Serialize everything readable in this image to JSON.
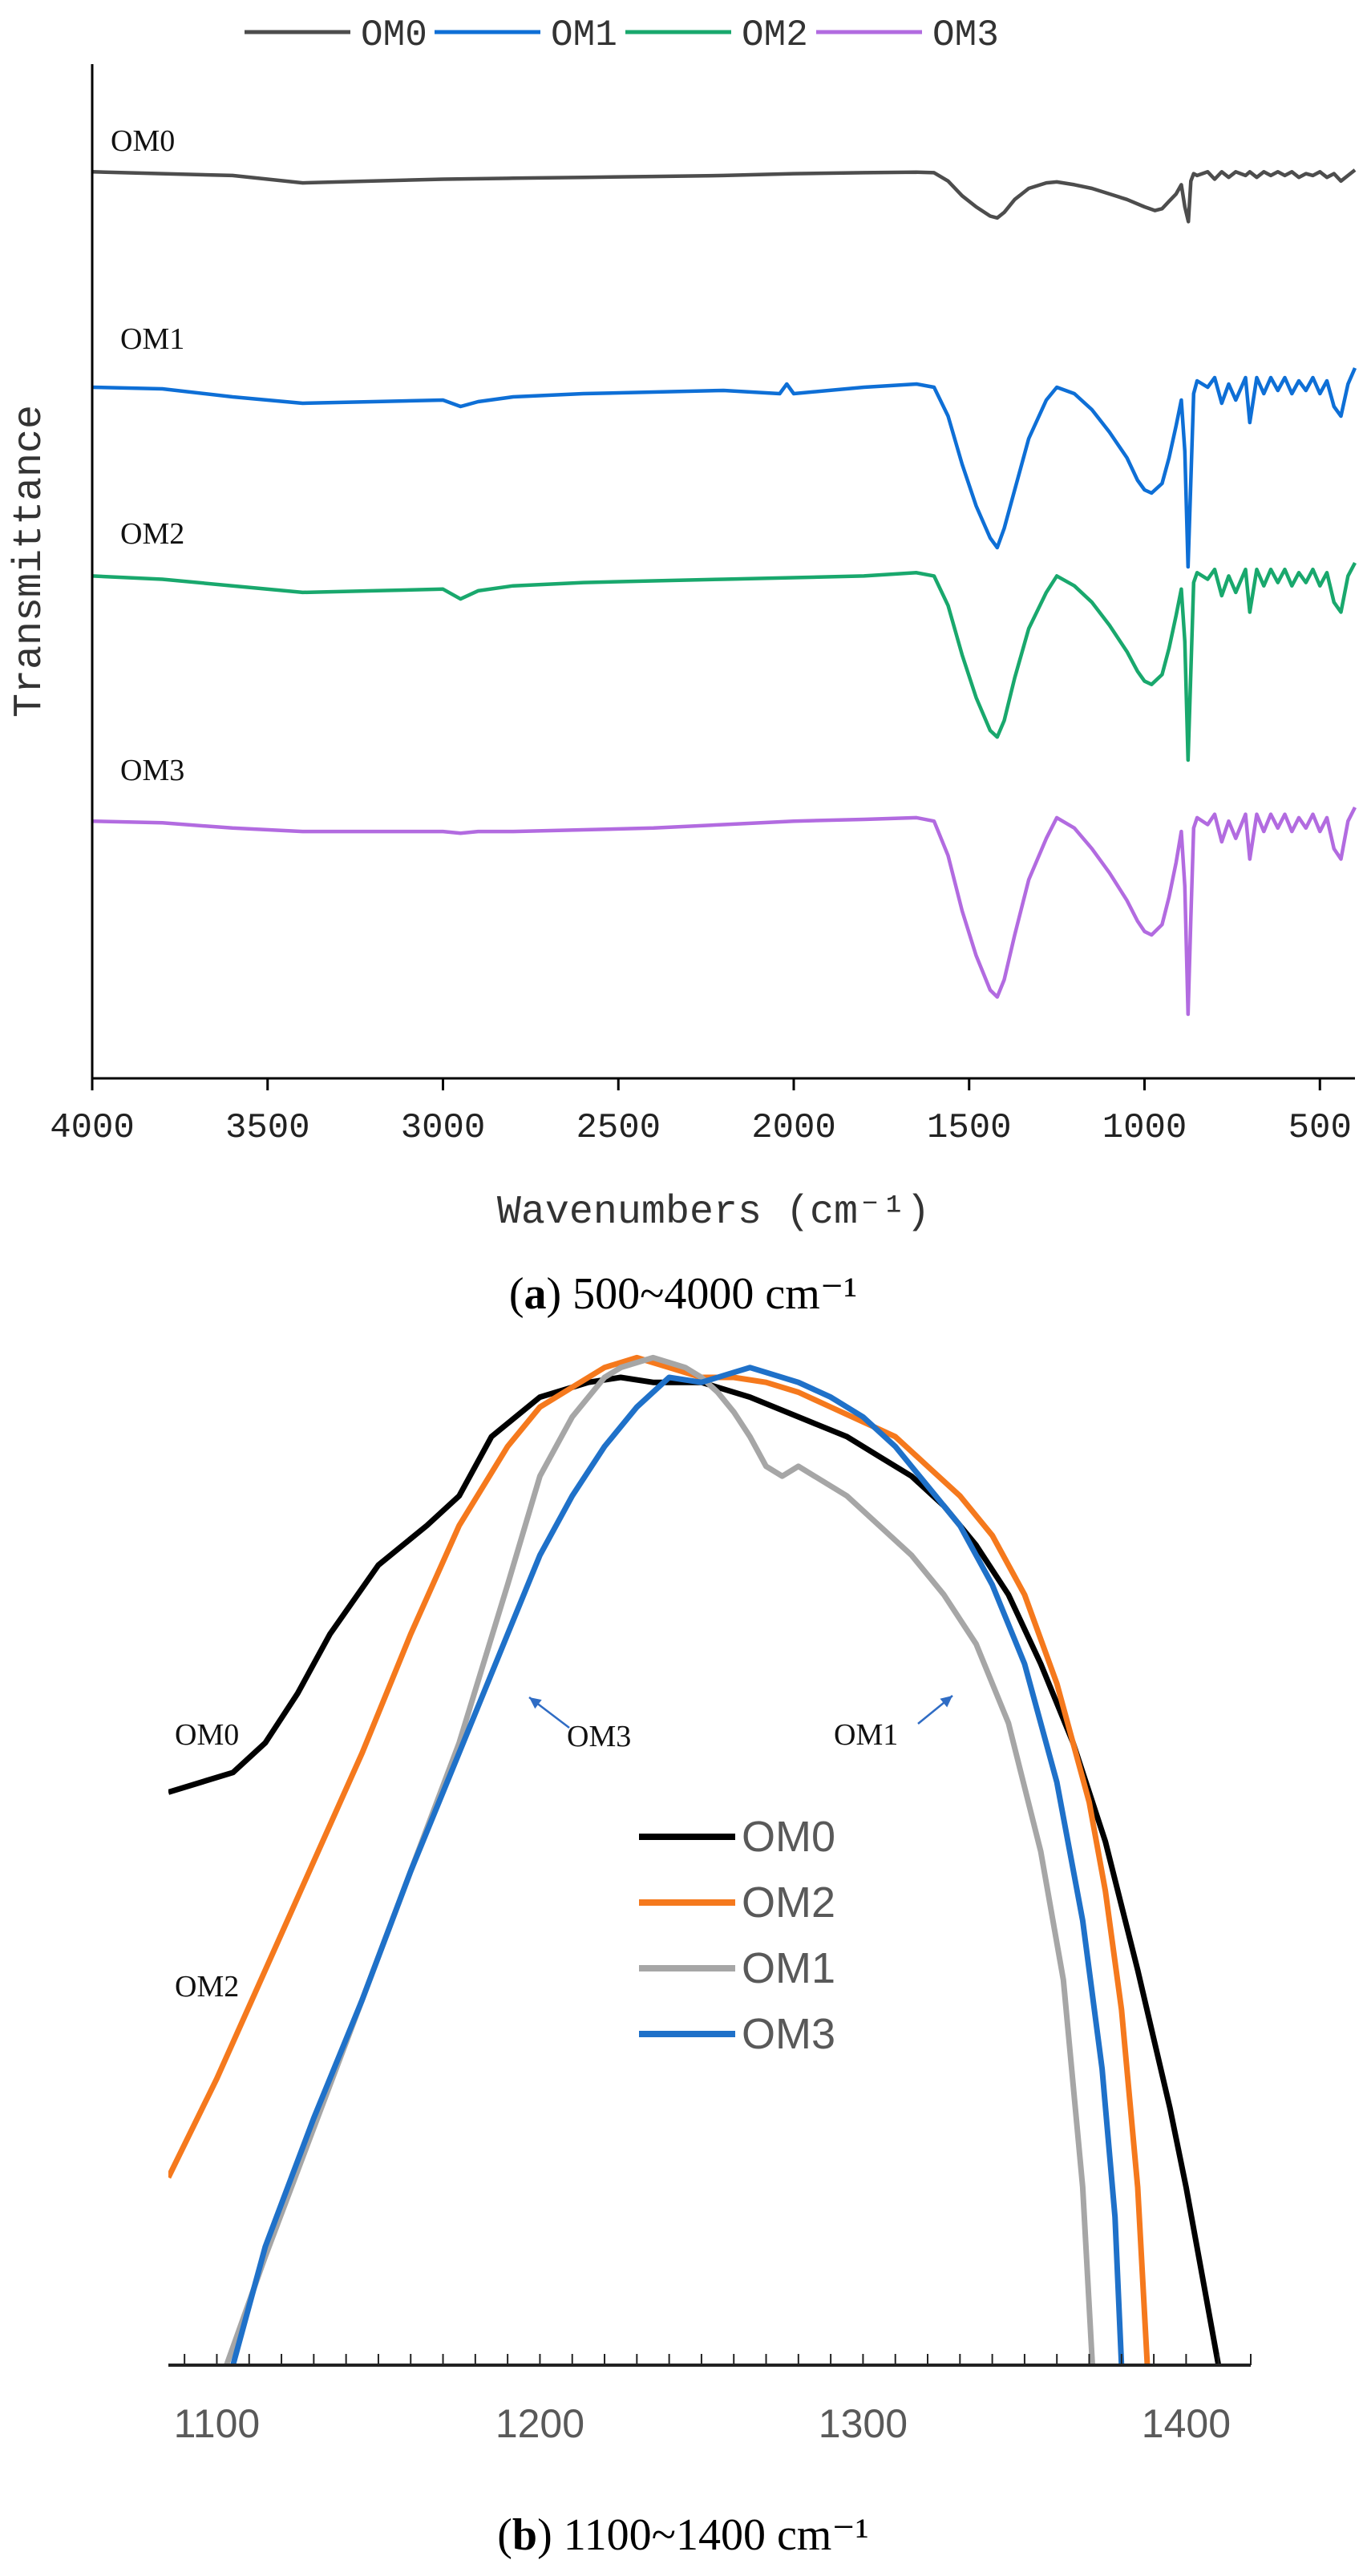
{
  "chart_data": [
    {
      "type": "line",
      "panel": "a",
      "caption_letter": "a",
      "caption_text": " 500~4000 cm⁻¹",
      "xlabel": "Wavenumbers (cm⁻¹)",
      "ylabel": "Transmittance",
      "xlim": [
        4000,
        400
      ],
      "xticks": [
        4000,
        3500,
        3000,
        2500,
        2000,
        1500,
        1000,
        500
      ],
      "legend": [
        "OM0",
        "OM1",
        "OM2",
        "OM3"
      ],
      "legend_position": "top",
      "series": [
        {
          "name": "OM0",
          "color": "#4d4d4d",
          "label": "OM0",
          "x": [
            4000,
            3800,
            3600,
            3400,
            3200,
            3000,
            2800,
            2600,
            2400,
            2200,
            2000,
            1800,
            1650,
            1600,
            1560,
            1520,
            1480,
            1440,
            1420,
            1400,
            1370,
            1330,
            1280,
            1250,
            1200,
            1150,
            1100,
            1050,
            1000,
            970,
            950,
            930,
            910,
            895,
            885,
            875,
            868,
            860,
            850,
            820,
            800,
            780,
            760,
            740,
            712,
            700,
            680,
            660,
            640,
            620,
            600,
            580,
            560,
            540,
            520,
            500,
            480,
            460,
            440,
            420,
            400
          ],
          "y": [
            97,
            96,
            95,
            91,
            92,
            93,
            93.5,
            94,
            94.5,
            95,
            96,
            96.5,
            96.8,
            96.5,
            92,
            84,
            78,
            73,
            72,
            75,
            82,
            88,
            91,
            91.5,
            90,
            88,
            85,
            82,
            78,
            76,
            77,
            81,
            85,
            90,
            78,
            70,
            92,
            96,
            95,
            97,
            93,
            97,
            94,
            97,
            95,
            97,
            94,
            97,
            95,
            97,
            95,
            97,
            94,
            96,
            95,
            97,
            94,
            96,
            92,
            95,
            98
          ]
        },
        {
          "name": "OM1",
          "color": "#0e6fd6",
          "label": "OM1",
          "x": [
            4000,
            3800,
            3600,
            3400,
            3200,
            3000,
            2950,
            2900,
            2800,
            2600,
            2400,
            2200,
            2040,
            2020,
            2000,
            1800,
            1650,
            1600,
            1560,
            1520,
            1480,
            1440,
            1420,
            1400,
            1370,
            1330,
            1280,
            1250,
            1200,
            1150,
            1100,
            1050,
            1020,
            1000,
            980,
            950,
            930,
            910,
            895,
            885,
            876,
            868,
            860,
            850,
            820,
            800,
            780,
            760,
            740,
            712,
            700,
            680,
            660,
            640,
            620,
            600,
            580,
            560,
            540,
            520,
            500,
            480,
            460,
            440,
            420,
            400
          ],
          "y": [
            94,
            93.5,
            91,
            89,
            89.5,
            90,
            88,
            89.5,
            91,
            92,
            92.5,
            93,
            92,
            95,
            92,
            94,
            95,
            94,
            85,
            70,
            57,
            47,
            44,
            50,
            62,
            78,
            90,
            94,
            92,
            87,
            80,
            72,
            65,
            62,
            61,
            64,
            72,
            82,
            90,
            74,
            38,
            65,
            92,
            96,
            94,
            97,
            89,
            95,
            90,
            97,
            83,
            97,
            92,
            97,
            93,
            97,
            92,
            96,
            93,
            97,
            92,
            96,
            88,
            85,
            95,
            100
          ]
        },
        {
          "name": "OM2",
          "color": "#19a86d",
          "label": "OM2",
          "x": [
            4000,
            3800,
            3600,
            3400,
            3200,
            3000,
            2950,
            2900,
            2800,
            2600,
            2400,
            2200,
            2000,
            1800,
            1650,
            1600,
            1560,
            1520,
            1480,
            1440,
            1420,
            1400,
            1370,
            1330,
            1280,
            1250,
            1200,
            1150,
            1100,
            1050,
            1020,
            1000,
            980,
            950,
            930,
            910,
            895,
            885,
            876,
            868,
            860,
            850,
            820,
            800,
            780,
            760,
            740,
            712,
            700,
            680,
            660,
            640,
            620,
            600,
            580,
            560,
            540,
            520,
            500,
            480,
            460,
            440,
            420,
            400
          ],
          "y": [
            96,
            95,
            93,
            91,
            91.5,
            92,
            89,
            91.5,
            93,
            94,
            94.5,
            95,
            95.5,
            96,
            97,
            96,
            87,
            72,
            59,
            49,
            47,
            52,
            65,
            80,
            91,
            96,
            93,
            88,
            81,
            73,
            67,
            64,
            63,
            66,
            74,
            84,
            92,
            76,
            40,
            67,
            94,
            97,
            95,
            98,
            90,
            96,
            91,
            98,
            85,
            98,
            93,
            98,
            94,
            98,
            93,
            97,
            94,
            98,
            93,
            97,
            88,
            85,
            96,
            100
          ]
        },
        {
          "name": "OM3",
          "color": "#b26be0",
          "label": "OM3",
          "x": [
            4000,
            3800,
            3600,
            3400,
            3200,
            3000,
            2950,
            2900,
            2800,
            2600,
            2400,
            2200,
            2000,
            1800,
            1650,
            1600,
            1560,
            1520,
            1480,
            1440,
            1420,
            1400,
            1370,
            1330,
            1280,
            1250,
            1200,
            1150,
            1100,
            1050,
            1020,
            1000,
            980,
            950,
            930,
            910,
            895,
            885,
            876,
            868,
            860,
            850,
            820,
            800,
            780,
            760,
            740,
            712,
            700,
            680,
            660,
            640,
            620,
            600,
            580,
            560,
            540,
            520,
            500,
            480,
            460,
            440,
            420,
            400
          ],
          "y": [
            96,
            95.5,
            94,
            93,
            93,
            93,
            92.5,
            93,
            93,
            93.5,
            94,
            95,
            96,
            96.5,
            97,
            96,
            86,
            70,
            57,
            47,
            45,
            50,
            63,
            79,
            91,
            97,
            94,
            88,
            81,
            73,
            67,
            64,
            63,
            66,
            74,
            84,
            93,
            77,
            40,
            68,
            94,
            97,
            95,
            98,
            90,
            96,
            91,
            98,
            85,
            98,
            93,
            98,
            94,
            98,
            93,
            97,
            94,
            98,
            93,
            97,
            88,
            85,
            96,
            100
          ]
        }
      ]
    },
    {
      "type": "line",
      "panel": "b",
      "caption_letter": "b",
      "caption_text": " 1100~1400 cm⁻¹",
      "xlim": [
        1085,
        1420
      ],
      "ylim": [
        0,
        100
      ],
      "xticks": [
        1100,
        1200,
        1300,
        1400
      ],
      "legend": [
        "OM0",
        "OM2",
        "OM1",
        "OM3"
      ],
      "legend_position": "center",
      "annotations": [
        {
          "text": "OM0"
        },
        {
          "text": "OM2"
        },
        {
          "text": "OM3"
        },
        {
          "text": "OM1"
        }
      ],
      "series": [
        {
          "name": "OM0",
          "color": "#000000",
          "x": [
            1085,
            1095,
            1105,
            1115,
            1125,
            1135,
            1150,
            1165,
            1175,
            1185,
            1200,
            1215,
            1225,
            1235,
            1250,
            1265,
            1280,
            1295,
            1305,
            1315,
            1325,
            1335,
            1345,
            1355,
            1365,
            1375,
            1385,
            1395,
            1400,
            1405,
            1410
          ],
          "y": [
            58,
            59,
            60,
            63,
            68,
            74,
            81,
            85,
            88,
            94,
            98,
            99.5,
            100,
            99.5,
            99.5,
            98,
            96,
            94,
            92,
            90,
            87,
            83,
            78,
            71,
            63,
            53,
            40,
            26,
            18,
            9,
            0
          ]
        },
        {
          "name": "OM2",
          "color": "#f5791d",
          "x": [
            1085,
            1100,
            1115,
            1130,
            1145,
            1160,
            1175,
            1190,
            1200,
            1210,
            1220,
            1230,
            1240,
            1250,
            1260,
            1270,
            1280,
            1290,
            1300,
            1310,
            1320,
            1330,
            1340,
            1350,
            1360,
            1370,
            1375,
            1380,
            1385,
            1388
          ],
          "y": [
            19,
            29,
            40,
            51,
            62,
            74,
            85,
            93,
            97,
            99,
            101,
            102,
            101,
            100,
            100,
            99.5,
            98.5,
            97,
            95.5,
            94,
            91,
            88,
            84,
            78,
            69,
            57,
            48,
            36,
            18,
            0
          ]
        },
        {
          "name": "OM1",
          "color": "#a6a6a6",
          "x": [
            1103,
            1115,
            1130,
            1145,
            1160,
            1175,
            1190,
            1200,
            1210,
            1220,
            1225,
            1230,
            1235,
            1240,
            1245,
            1250,
            1255,
            1260,
            1265,
            1270,
            1275,
            1280,
            1285,
            1295,
            1305,
            1315,
            1325,
            1335,
            1345,
            1355,
            1362,
            1368,
            1371
          ],
          "y": [
            0,
            11,
            24,
            37,
            50,
            63,
            79,
            90,
            96,
            100,
            101,
            101.5,
            102,
            101.5,
            101,
            100,
            98.5,
            96.5,
            94,
            91,
            90,
            91,
            90,
            88,
            85,
            82,
            78,
            73,
            65,
            52,
            39,
            18,
            0
          ]
        },
        {
          "name": "OM3",
          "color": "#1f71c9",
          "x": [
            1105,
            1115,
            1130,
            1145,
            1160,
            1175,
            1190,
            1200,
            1210,
            1220,
            1230,
            1240,
            1250,
            1260,
            1265,
            1270,
            1280,
            1290,
            1300,
            1310,
            1320,
            1330,
            1340,
            1350,
            1360,
            1368,
            1374,
            1378,
            1380
          ],
          "y": [
            0,
            12,
            25,
            37,
            50,
            62,
            74,
            82,
            88,
            93,
            97,
            100,
            99.5,
            100.5,
            101,
            100.5,
            99.5,
            98,
            96,
            93,
            89,
            85,
            79,
            71,
            59,
            45,
            30,
            15,
            0
          ]
        }
      ]
    }
  ]
}
